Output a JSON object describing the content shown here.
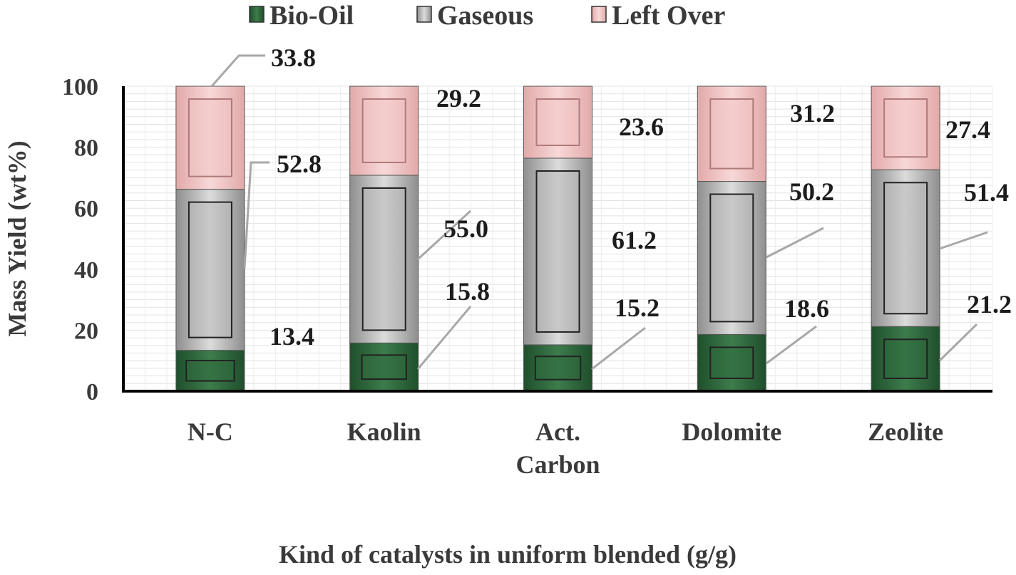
{
  "chart_data": {
    "type": "bar",
    "stacked": true,
    "categories": [
      "N-C",
      "Kaolin",
      "Act. Carbon",
      "Dolomite",
      "Zeolite"
    ],
    "category_lines": [
      [
        "N-C"
      ],
      [
        "Kaolin"
      ],
      [
        "Act.",
        "Carbon"
      ],
      [
        "Dolomite"
      ],
      [
        "Zeolite"
      ]
    ],
    "series": [
      {
        "name": "Bio-Oil",
        "values": [
          13.4,
          15.8,
          15.2,
          18.6,
          21.2
        ],
        "labels": [
          "13.4",
          "15.8",
          "15.2",
          "18.6",
          "21.2"
        ],
        "color": "#2f6b3e"
      },
      {
        "name": "Gaseous",
        "values": [
          52.8,
          55.0,
          61.2,
          50.2,
          51.4
        ],
        "labels": [
          "52.8",
          "55.0",
          "61.2",
          "50.2",
          "51.4"
        ],
        "color": "#b9b9b9"
      },
      {
        "name": "Left Over",
        "values": [
          33.8,
          29.2,
          23.6,
          31.2,
          27.4
        ],
        "labels": [
          "33.8",
          "29.2",
          "23.6",
          "31.2",
          "27.4"
        ],
        "color": "#f2c4c4"
      }
    ],
    "title": "",
    "xlabel": "Kind of catalysts in uniform blended (g/g)",
    "ylabel": "Mass Yield (wt%)",
    "ylim": [
      0,
      100
    ],
    "yticks": [
      0,
      20,
      40,
      60,
      80,
      100
    ],
    "grid": true,
    "legend": "top"
  }
}
